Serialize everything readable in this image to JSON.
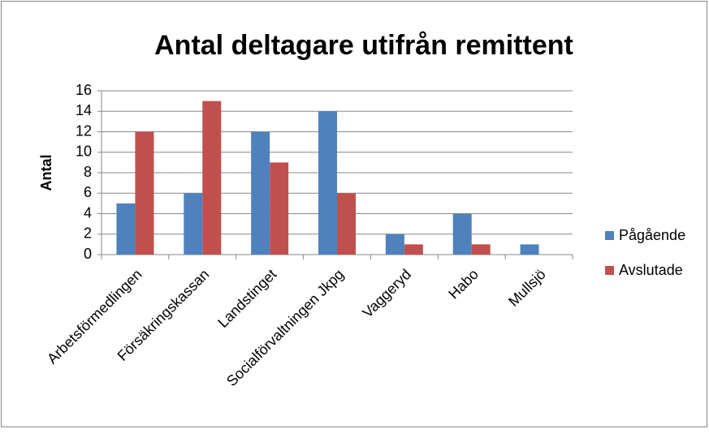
{
  "chart_data": {
    "type": "bar",
    "title": "Antal deltagare utifrån remittent",
    "y_label": "Antal",
    "categories": [
      "Arbetsförmedlingen",
      "Försäkringskassan",
      "Landstinget",
      "Socialförvaltningen Jkpg",
      "Vaggeryd",
      "Habo",
      "Mullsjö"
    ],
    "series": [
      {
        "name": "Pågående",
        "color": "#4f81bd",
        "values": [
          5,
          6,
          12,
          14,
          2,
          4,
          1
        ]
      },
      {
        "name": "Avslutade",
        "color": "#c0504d",
        "values": [
          12,
          15,
          9,
          6,
          1,
          1,
          0
        ]
      }
    ],
    "ylim": [
      0,
      16
    ],
    "yticks": [
      0,
      2,
      4,
      6,
      8,
      10,
      12,
      14,
      16
    ],
    "grid": true,
    "legend": "right"
  }
}
